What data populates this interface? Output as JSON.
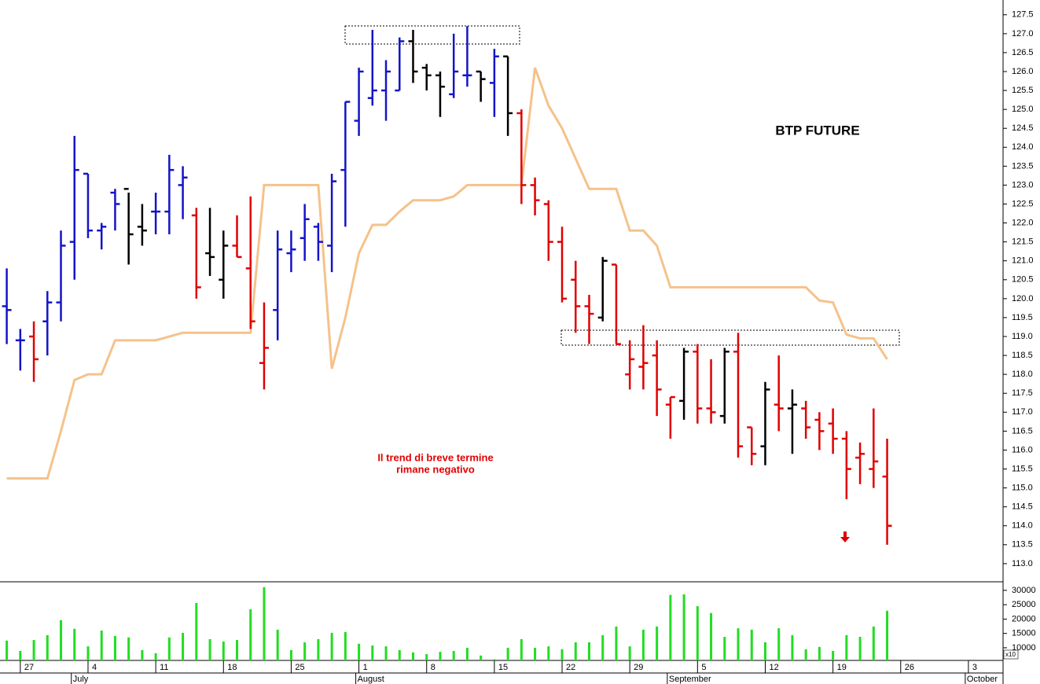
{
  "chart_data": {
    "type": "ohlc",
    "title": "BTP FUTURE",
    "annotation": [
      "Il trend di breve termine",
      "rimane negativo"
    ],
    "categories": [
      null,
      "27",
      null,
      null,
      null,
      null,
      "4",
      null,
      null,
      null,
      null,
      "11",
      null,
      null,
      null,
      null,
      "18",
      null,
      null,
      null,
      null,
      "25",
      null,
      null,
      null,
      null,
      "1",
      null,
      null,
      null,
      null,
      "8",
      null,
      null,
      null,
      null,
      "15",
      null,
      null,
      null,
      null,
      "22",
      null,
      null,
      null,
      null,
      "29",
      null,
      null,
      null,
      null,
      "5",
      null,
      null,
      null,
      null,
      "12",
      null,
      null,
      null,
      null,
      "19",
      null,
      null,
      null,
      null,
      "26",
      null,
      null,
      null,
      null,
      "3"
    ],
    "months": [
      null,
      null,
      null,
      null,
      null,
      "July",
      null,
      null,
      null,
      null,
      null,
      null,
      null,
      null,
      null,
      null,
      null,
      null,
      null,
      null,
      null,
      null,
      null,
      null,
      null,
      null,
      "August",
      null,
      null,
      null,
      null,
      null,
      null,
      null,
      null,
      null,
      null,
      null,
      null,
      null,
      null,
      null,
      null,
      null,
      null,
      null,
      null,
      null,
      null,
      "September",
      null,
      null,
      null,
      null,
      null,
      null,
      null,
      null,
      null,
      null,
      null,
      null,
      null,
      null,
      null,
      null,
      null,
      null,
      null,
      null,
      null,
      "October"
    ],
    "ohlc": {
      "open": [
        119.8,
        118.9,
        119.0,
        119.4,
        119.9,
        121.5,
        123.3,
        121.8,
        122.8,
        122.9,
        121.9,
        122.3,
        122.3,
        123.0,
        122.2,
        121.2,
        120.5,
        121.4,
        120.8,
        118.3,
        119.7,
        121.2,
        121.6,
        121.9,
        121.4,
        123.4,
        124.7,
        125.3,
        125.5,
        125.5,
        126.8,
        126.1,
        125.9,
        125.4,
        125.9,
        126.0,
        125.7,
        126.4,
        124.9,
        123.0,
        122.5,
        121.5,
        120.5,
        119.8,
        119.5,
        120.9,
        118.0,
        118.2,
        118.5,
        117.2,
        117.3,
        118.6,
        117.1,
        116.9,
        118.6,
        116.6,
        116.1,
        117.2,
        117.1,
        117.1,
        116.8,
        116.7,
        116.3,
        115.8,
        115.5,
        115.3,
        null,
        null,
        null,
        null,
        null,
        null
      ],
      "high": [
        120.8,
        119.2,
        119.4,
        120.2,
        121.8,
        124.3,
        123.3,
        122.0,
        122.9,
        122.8,
        122.5,
        122.8,
        123.8,
        123.5,
        122.4,
        122.4,
        121.8,
        122.2,
        122.7,
        119.9,
        121.8,
        121.8,
        122.5,
        122.0,
        123.3,
        125.2,
        126.1,
        127.1,
        126.3,
        126.9,
        127.1,
        126.2,
        126.0,
        127.0,
        127.2,
        126.0,
        126.6,
        126.4,
        125.0,
        123.2,
        122.6,
        121.9,
        121.0,
        120.1,
        121.1,
        120.9,
        118.9,
        119.3,
        118.9,
        117.4,
        118.7,
        118.8,
        118.4,
        118.7,
        119.1,
        116.6,
        117.8,
        118.5,
        117.6,
        117.3,
        117.0,
        117.1,
        116.5,
        116.2,
        117.1,
        116.3,
        null,
        null,
        null,
        null,
        null,
        null
      ],
      "low": [
        118.8,
        118.1,
        117.8,
        118.5,
        119.4,
        120.5,
        121.6,
        121.3,
        121.8,
        120.9,
        121.4,
        121.7,
        121.7,
        122.1,
        120.0,
        120.6,
        120.0,
        121.1,
        119.2,
        117.6,
        118.9,
        120.7,
        121.0,
        121.0,
        120.7,
        121.9,
        124.3,
        125.1,
        124.7,
        125.5,
        125.7,
        125.5,
        124.8,
        125.3,
        125.6,
        125.2,
        124.8,
        124.3,
        122.5,
        122.2,
        121.0,
        119.9,
        119.1,
        118.8,
        119.4,
        118.8,
        117.6,
        117.6,
        116.9,
        116.3,
        116.8,
        116.7,
        116.7,
        116.7,
        115.8,
        115.6,
        115.6,
        116.5,
        115.9,
        116.3,
        116.0,
        115.9,
        114.7,
        115.1,
        115.0,
        113.5,
        null,
        null,
        null,
        null,
        null,
        null
      ],
      "close": [
        119.7,
        118.9,
        118.4,
        119.9,
        121.4,
        123.4,
        121.8,
        121.9,
        122.5,
        121.7,
        121.8,
        122.3,
        123.4,
        123.2,
        120.3,
        121.1,
        121.4,
        121.1,
        119.4,
        118.7,
        121.3,
        121.3,
        122.1,
        121.5,
        123.1,
        125.2,
        126.0,
        125.5,
        126.0,
        126.8,
        126.0,
        125.9,
        125.6,
        126.0,
        125.9,
        125.8,
        126.4,
        124.9,
        123.0,
        122.6,
        121.5,
        120.0,
        119.8,
        119.6,
        121.0,
        118.8,
        118.4,
        118.3,
        117.6,
        117.4,
        118.6,
        117.1,
        117.0,
        118.6,
        116.1,
        115.9,
        117.6,
        117.1,
        117.2,
        116.6,
        116.5,
        116.3,
        115.5,
        115.9,
        115.7,
        114.0,
        null,
        null,
        null,
        null,
        null,
        null
      ],
      "colors": [
        "#1414c8",
        "#1414c8",
        "#e00000",
        "#1414c8",
        "#1414c8",
        "#1414c8",
        "#1414c8",
        "#1414c8",
        "#1414c8",
        "#000000",
        "#000000",
        "#1414c8",
        "#1414c8",
        "#1414c8",
        "#e00000",
        "#000000",
        "#000000",
        "#e00000",
        "#e00000",
        "#e00000",
        "#1414c8",
        "#1414c8",
        "#1414c8",
        "#1414c8",
        "#1414c8",
        "#1414c8",
        "#1414c8",
        "#1414c8",
        "#1414c8",
        "#1414c8",
        "#000000",
        "#000000",
        "#000000",
        "#1414c8",
        "#1414c8",
        "#000000",
        "#1414c8",
        "#000000",
        "#e00000",
        "#e00000",
        "#e00000",
        "#e00000",
        "#e00000",
        "#e00000",
        "#000000",
        "#e00000",
        "#e00000",
        "#e00000",
        "#e00000",
        "#e00000",
        "#000000",
        "#e00000",
        "#e00000",
        "#000000",
        "#e00000",
        "#e00000",
        "#000000",
        "#e00000",
        "#000000",
        "#e00000",
        "#e00000",
        "#e00000",
        "#e00000",
        "#e00000",
        "#e00000",
        "#e00000",
        null,
        null,
        null,
        null,
        null,
        null
      ]
    },
    "overlay": {
      "type": "line",
      "color": "#f5c28a",
      "values": [
        115.25,
        115.25,
        115.25,
        115.25,
        116.5,
        117.85,
        118.0,
        118.0,
        118.9,
        118.9,
        118.9,
        118.9,
        119.0,
        119.1,
        119.1,
        119.1,
        119.1,
        119.1,
        119.1,
        123.0,
        123.0,
        123.0,
        123.0,
        123.0,
        118.15,
        119.5,
        121.2,
        121.95,
        121.95,
        122.3,
        122.6,
        122.6,
        122.6,
        122.7,
        123.0,
        123.0,
        123.0,
        123.0,
        123.0,
        126.1,
        125.1,
        124.5,
        123.7,
        122.9,
        122.9,
        122.9,
        121.8,
        121.8,
        121.4,
        120.3,
        120.3,
        120.3,
        120.3,
        120.3,
        120.3,
        120.3,
        120.3,
        120.3,
        120.3,
        120.3,
        119.95,
        119.9,
        119.05,
        118.95,
        118.95,
        118.4,
        null,
        null,
        null,
        null,
        null,
        null
      ]
    },
    "ylim": [
      112.52,
      127.89
    ],
    "yticks": [
      {
        "value": 113.0,
        "label": "113.0"
      },
      {
        "value": 113.5,
        "label": "113.5"
      },
      {
        "value": 114.0,
        "label": "114.0"
      },
      {
        "value": 114.5,
        "label": "114.5"
      },
      {
        "value": 115.0,
        "label": "115.0"
      },
      {
        "value": 115.5,
        "label": "115.5"
      },
      {
        "value": 116.0,
        "label": "116.0"
      },
      {
        "value": 116.5,
        "label": "116.5"
      },
      {
        "value": 117.0,
        "label": "117.0"
      },
      {
        "value": 117.5,
        "label": "117.5"
      },
      {
        "value": 118.0,
        "label": "118.0"
      },
      {
        "value": 118.5,
        "label": "118.5"
      },
      {
        "value": 119.0,
        "label": "119.0"
      },
      {
        "value": 119.5,
        "label": "119.5"
      },
      {
        "value": 120.0,
        "label": "120.0"
      },
      {
        "value": 120.5,
        "label": "120.5"
      },
      {
        "value": 121.0,
        "label": "121.0"
      },
      {
        "value": 121.5,
        "label": "121.5"
      },
      {
        "value": 122.0,
        "label": "122.0"
      },
      {
        "value": 122.5,
        "label": "122.5"
      },
      {
        "value": 123.0,
        "label": "123.0"
      },
      {
        "value": 123.5,
        "label": "123.5"
      },
      {
        "value": 124.0,
        "label": "124.0"
      },
      {
        "value": 124.5,
        "label": "124.5"
      },
      {
        "value": 125.0,
        "label": "125.0"
      },
      {
        "value": 125.5,
        "label": "125.5"
      },
      {
        "value": 126.0,
        "label": "126.0"
      },
      {
        "value": 126.5,
        "label": "126.5"
      },
      {
        "value": 127.0,
        "label": "127.0"
      },
      {
        "value": 127.5,
        "label": "127.5"
      }
    ],
    "volume": {
      "type": "bar",
      "color": "#22dd22",
      "unit_label": "x10",
      "values": [
        12500,
        8900,
        12700,
        14400,
        19600,
        16600,
        10500,
        16000,
        14100,
        13600,
        9200,
        8100,
        13600,
        15200,
        25600,
        13000,
        12200,
        12700,
        23400,
        31100,
        16300,
        9200,
        11900,
        13000,
        15200,
        15500,
        11400,
        10800,
        10500,
        9200,
        8400,
        7800,
        8600,
        8900,
        10000,
        7300,
        6000,
        10000,
        13000,
        10000,
        10500,
        9500,
        11900,
        11900,
        14400,
        17400,
        10500,
        16300,
        17400,
        28400,
        28600,
        24500,
        22100,
        13800,
        16800,
        16300,
        11900,
        16800,
        14400,
        9500,
        10300,
        8900,
        14400,
        13800,
        17400,
        22900,
        null,
        null,
        null,
        null,
        null,
        null
      ],
      "ylim": [
        5600,
        32700
      ],
      "yticks": [
        10000,
        15000,
        20000,
        25000,
        30000
      ]
    }
  }
}
